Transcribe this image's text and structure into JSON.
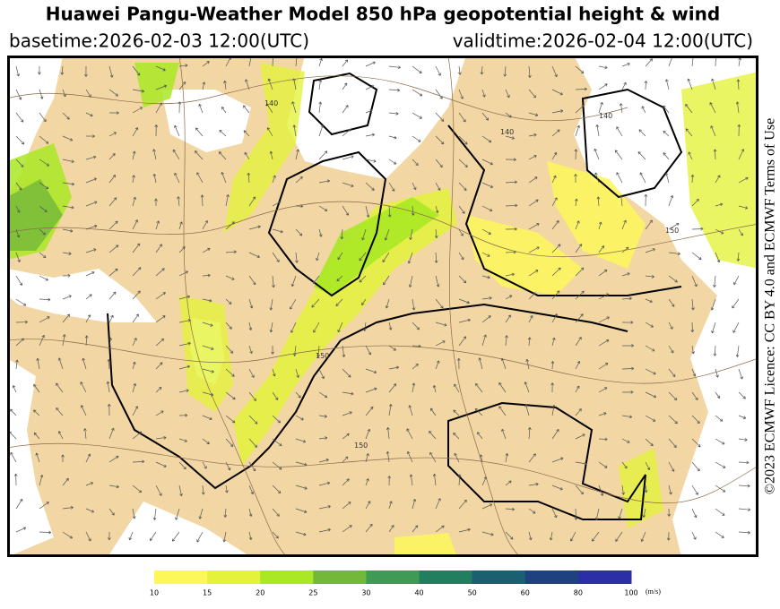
{
  "header": {
    "title": "Huawei Pangu-Weather Model 850 hPa geopotential height & wind",
    "basetime": "basetime:2026-02-03 12:00(UTC)",
    "validtime": "validtime:2026-02-04 12:00(UTC)"
  },
  "map": {
    "contour_labels": [
      "140",
      "140",
      "140",
      "150",
      "150",
      "150"
    ]
  },
  "colorbar": {
    "ticks": [
      10,
      15,
      20,
      25,
      30,
      40,
      50,
      60,
      80,
      100
    ],
    "colors": [
      "#fdf75a",
      "#e4f23c",
      "#a9e824",
      "#74b83a",
      "#3f9a55",
      "#217f5f",
      "#1b5f70",
      "#1d427f",
      "#2b2fa6"
    ],
    "unit": "(m/s)"
  },
  "licence": "©2023 ECMWF Licence: CC BY 4.0 and ECMWF Terms of Use"
}
